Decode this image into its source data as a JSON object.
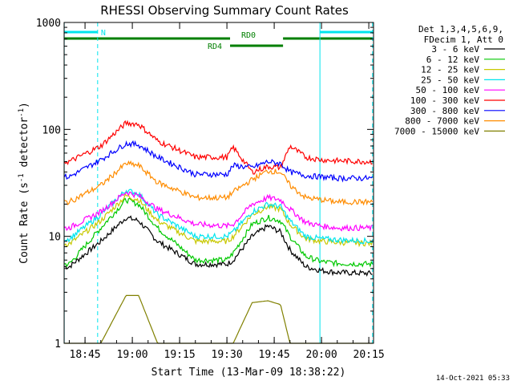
{
  "chart_data": {
    "type": "line",
    "title": "RHESSI Observing Summary Count Rates",
    "xlabel": "Start Time (13-Mar-09 18:38:22)",
    "ylabel_main": "Count Rate (s",
    "ylabel_sup1": "-1",
    "ylabel_mid": " detector",
    "ylabel_sup2": "-1",
    "ylabel_end": ")",
    "y_scale": "log",
    "ylim": [
      1,
      1000
    ],
    "xlim_minutes": [
      38.37,
      136.5
    ],
    "x_axis_note": "minutes after 18:00 on 13-Mar-09",
    "xticks": [
      {
        "m": 45,
        "label": "18:45"
      },
      {
        "m": 60,
        "label": "19:00"
      },
      {
        "m": 75,
        "label": "19:15"
      },
      {
        "m": 90,
        "label": "19:30"
      },
      {
        "m": 105,
        "label": "19:45"
      },
      {
        "m": 120,
        "label": "20:00"
      },
      {
        "m": 135,
        "label": "20:15"
      }
    ],
    "yticks": [
      {
        "v": 1,
        "label": "1"
      },
      {
        "v": 10,
        "label": "10"
      },
      {
        "v": 100,
        "label": "100"
      },
      {
        "v": 1000,
        "label": "1000"
      }
    ],
    "grid": false,
    "legend_position": "right",
    "legend_header": [
      "Det 1,3,4,5,6,9,",
      "FDecim 1, Att 0"
    ],
    "timestamp": "14-Oct-2021 05:33",
    "bars": [
      {
        "label": "N",
        "color": "#00e5ee",
        "level": 1,
        "segments": [
          [
            38.4,
            49.0
          ],
          [
            119.5,
            136.2
          ]
        ]
      },
      {
        "label": "RD0",
        "color": "#007f00",
        "level": 2,
        "segments": [
          [
            38.4,
            91.0
          ],
          [
            107.8,
            136.2
          ]
        ]
      },
      {
        "label": "RD4",
        "color": "#007f00",
        "level": 3,
        "segments": [
          [
            91.0,
            107.8
          ]
        ]
      }
    ],
    "vlines_solid": [
      38.4,
      119.5
    ],
    "vlines_dashed": [
      49.0,
      136.2
    ],
    "x_time_points_minutes": [
      40,
      50,
      58,
      62,
      68,
      80,
      90,
      92,
      98,
      103,
      107,
      110,
      115,
      120,
      125,
      136
    ],
    "series": [
      {
        "name": "3 - 6 keV",
        "color": "#000000",
        "values": [
          5.2,
          9,
          15,
          14,
          9,
          5.5,
          5.5,
          6,
          10,
          12.5,
          11,
          7.5,
          5.2,
          4.8,
          4.6,
          4.5
        ]
      },
      {
        "name": "6 - 12 keV",
        "color": "#00c800",
        "values": [
          5.5,
          12,
          22,
          20,
          12,
          6,
          6,
          7,
          13,
          15,
          14,
          10,
          6.5,
          5.8,
          5.6,
          5.5
        ]
      },
      {
        "name": "12 - 25 keV",
        "color": "#c8c800",
        "values": [
          8.5,
          14,
          24,
          22,
          14,
          9,
          9,
          10,
          16,
          19,
          18,
          13,
          9.5,
          9,
          8.8,
          8.6
        ]
      },
      {
        "name": "25 - 50 keV",
        "color": "#00e5ee",
        "values": [
          9.5,
          16,
          27,
          25,
          16,
          10,
          10,
          11,
          17,
          20,
          19,
          14,
          10,
          9.5,
          9.3,
          9
        ]
      },
      {
        "name": "50 - 100 keV",
        "color": "#ff00ff",
        "values": [
          12,
          17,
          26,
          24,
          18,
          13,
          12.5,
          13,
          20,
          23,
          22,
          18,
          13.5,
          12.5,
          12,
          12
        ]
      },
      {
        "name": "100 - 300 keV",
        "color": "#ff0000",
        "values": [
          50,
          70,
          115,
          112,
          78,
          55,
          55,
          68,
          40,
          45,
          44,
          70,
          55,
          52,
          51,
          50
        ]
      },
      {
        "name": "300 - 800 keV",
        "color": "#0000ff",
        "values": [
          36,
          52,
          74,
          72,
          55,
          38,
          38,
          46,
          44,
          50,
          48,
          40,
          37,
          36,
          35,
          35
        ]
      },
      {
        "name": "800 - 7000 keV",
        "color": "#ff8c00",
        "values": [
          21,
          30,
          48,
          46,
          32,
          23,
          23,
          26,
          34,
          41,
          40,
          30,
          23,
          22,
          21,
          21
        ]
      },
      {
        "name": "7000 - 15000 keV",
        "color": "#808000",
        "values": [
          1,
          1,
          2.8,
          2.8,
          1,
          1,
          1,
          1,
          2.4,
          2.5,
          2.3,
          1,
          1,
          1,
          1,
          1
        ]
      }
    ]
  }
}
